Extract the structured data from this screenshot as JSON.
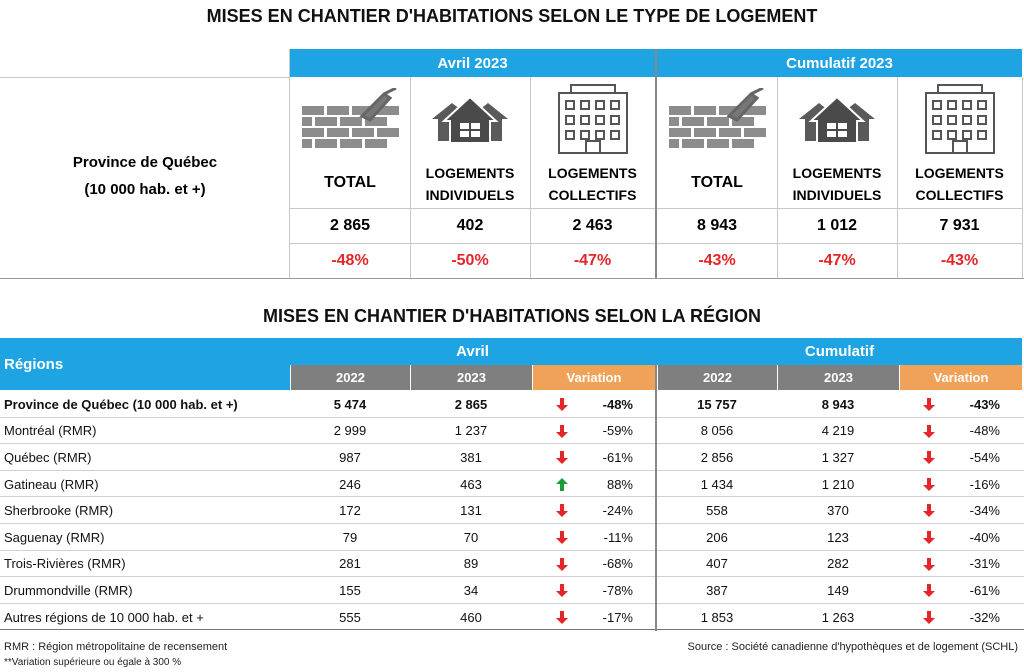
{
  "top": {
    "title": "MISES EN CHANTIER D'HABITATIONS SELON LE TYPE DE LOGEMENT",
    "row_label": [
      "Province de Québec",
      "(10 000 hab. et +)"
    ],
    "groups": [
      {
        "header": "Avril 2023",
        "columns": [
          {
            "label": [
              "TOTAL"
            ],
            "value": "2 865",
            "variation": "-48%"
          },
          {
            "label": [
              "LOGEMENTS",
              "INDIVIDUELS"
            ],
            "value": "402",
            "variation": "-50%"
          },
          {
            "label": [
              "LOGEMENTS",
              "COLLECTIFS"
            ],
            "value": "2 463",
            "variation": "-47%"
          }
        ]
      },
      {
        "header": "Cumulatif 2023",
        "columns": [
          {
            "label": [
              "TOTAL"
            ],
            "value": "8 943",
            "variation": "-43%"
          },
          {
            "label": [
              "LOGEMENTS",
              "INDIVIDUELS"
            ],
            "value": "1 012",
            "variation": "-47%"
          },
          {
            "label": [
              "LOGEMENTS",
              "COLLECTIFS"
            ],
            "value": "7 931",
            "variation": "-43%"
          }
        ]
      }
    ]
  },
  "regions": {
    "title": "MISES EN CHANTIER D'HABITATIONS SELON LA RÉGION",
    "header": "Régions",
    "groups": [
      "Avril",
      "Cumulatif"
    ],
    "subheaders": [
      "2022",
      "2023",
      "Variation",
      "2022",
      "2023",
      "Variation"
    ],
    "rows": [
      [
        "Province de Québec (10 000 hab. et +)",
        "5 474",
        "2 865",
        "-48%",
        "15 757",
        "8 943",
        "-43%"
      ],
      [
        "Montréal (RMR)",
        "2 999",
        "1 237",
        "-59%",
        "8 056",
        "4 219",
        "-48%"
      ],
      [
        "Québec (RMR)",
        "987",
        "381",
        "-61%",
        "2 856",
        "1 327",
        "-54%"
      ],
      [
        "Gatineau (RMR)",
        "246",
        "463",
        "88%",
        "1 434",
        "1 210",
        "-16%"
      ],
      [
        "Sherbrooke (RMR)",
        "172",
        "131",
        "-24%",
        "558",
        "370",
        "-34%"
      ],
      [
        "Saguenay (RMR)",
        "79",
        "70",
        "-11%",
        "206",
        "123",
        "-40%"
      ],
      [
        "Trois-Rivières (RMR)",
        "281",
        "89",
        "-68%",
        "407",
        "282",
        "-31%"
      ],
      [
        "Drummondville (RMR)",
        "155",
        "34",
        "-78%",
        "387",
        "149",
        "-61%"
      ],
      [
        "Autres régions de 10 000  hab. et +",
        "555",
        "460",
        "-17%",
        "1 853",
        "1 263",
        "-32%"
      ]
    ]
  },
  "notes": [
    "RMR : Région métropolitaine de recensement",
    "**Variation supérieure ou égale à 300 %"
  ],
  "source": "Source : Société canadienne d'hypothèques et de logement (SCHL)"
}
